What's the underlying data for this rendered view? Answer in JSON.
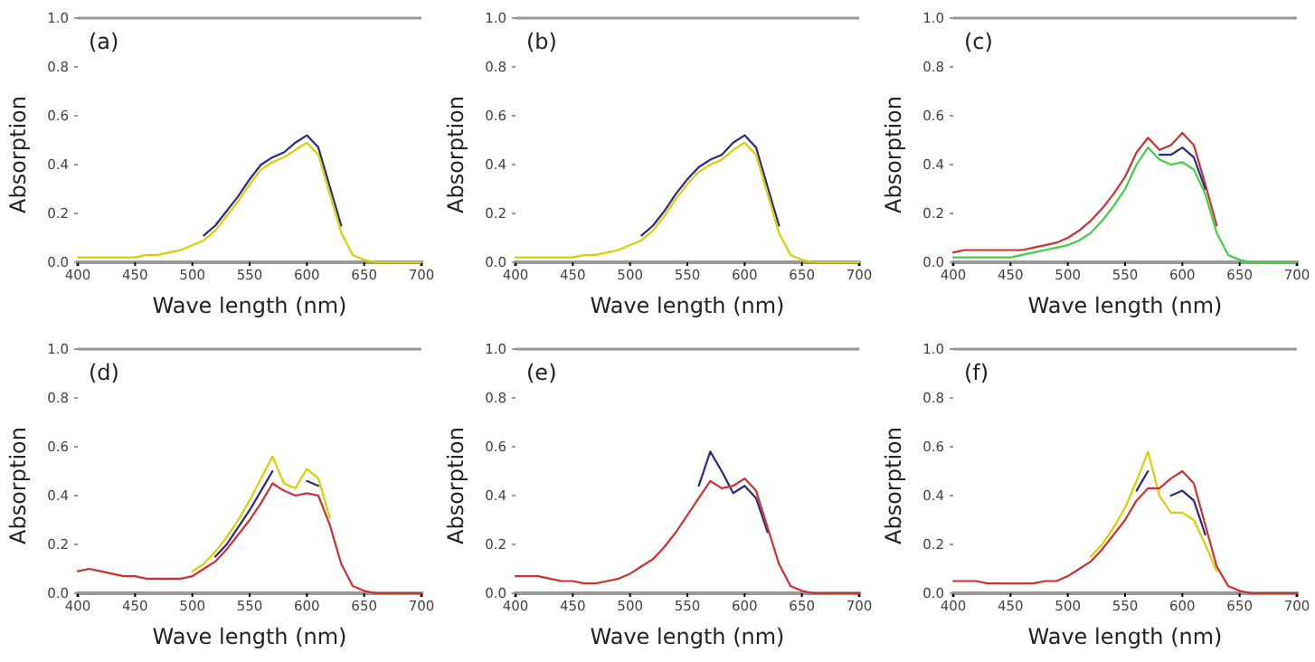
{
  "chart_data": [
    {
      "type": "line",
      "annotations": [
        "(a)"
      ],
      "xlabel": "Wave length (nm)",
      "ylabel": "Absorption",
      "x": [
        400,
        410,
        420,
        430,
        440,
        450,
        460,
        470,
        480,
        490,
        500,
        510,
        520,
        530,
        540,
        550,
        560,
        570,
        580,
        590,
        600,
        610,
        620,
        630,
        640,
        650,
        660,
        670,
        680,
        690,
        700
      ],
      "xlim": [
        400,
        700
      ],
      "xticks": [
        400,
        450,
        500,
        550,
        600,
        650,
        700
      ],
      "ylim": [
        0,
        1
      ],
      "yticks": [
        {
          "value": 0,
          "label": "0.0"
        },
        {
          "value": 0.2,
          "label": "0.2"
        },
        {
          "value": 0.4,
          "label": "0.4"
        },
        {
          "value": 0.6,
          "label": "0.6"
        },
        {
          "value": 0.8,
          "label": "0.8"
        },
        {
          "value": 1,
          "label": "1.0"
        }
      ],
      "marker": "none",
      "line_style": "solid",
      "series": [
        {
          "color": "#2a2a80",
          "values": [
            null,
            null,
            null,
            null,
            null,
            null,
            null,
            null,
            null,
            null,
            null,
            0.11,
            0.15,
            0.21,
            0.27,
            0.34,
            0.4,
            0.43,
            0.45,
            0.49,
            0.52,
            0.47,
            0.31,
            0.15,
            null,
            null,
            null,
            null,
            null,
            null,
            null
          ]
        },
        {
          "color": "#d8d000",
          "values": [
            0.02,
            0.02,
            0.02,
            0.02,
            0.02,
            0.02,
            0.03,
            0.03,
            0.04,
            0.05,
            0.07,
            0.09,
            0.13,
            0.19,
            0.25,
            0.32,
            0.38,
            0.41,
            0.43,
            0.46,
            0.49,
            0.44,
            0.28,
            0.12,
            0.03,
            0.01,
            0,
            0,
            0,
            0,
            0
          ]
        }
      ]
    },
    {
      "type": "line",
      "annotations": [
        "(b)"
      ],
      "xlabel": "Wave length (nm)",
      "ylabel": "Absorption",
      "x": [
        400,
        410,
        420,
        430,
        440,
        450,
        460,
        470,
        480,
        490,
        500,
        510,
        520,
        530,
        540,
        550,
        560,
        570,
        580,
        590,
        600,
        610,
        620,
        630,
        640,
        650,
        660,
        670,
        680,
        690,
        700
      ],
      "xlim": [
        400,
        700
      ],
      "xticks": [
        400,
        450,
        500,
        550,
        600,
        650,
        700
      ],
      "ylim": [
        0,
        1
      ],
      "yticks": [
        {
          "value": 0,
          "label": "0.0"
        },
        {
          "value": 0.2,
          "label": "0.2"
        },
        {
          "value": 0.4,
          "label": "0.4"
        },
        {
          "value": 0.6,
          "label": "0.6"
        },
        {
          "value": 0.8,
          "label": "0.8"
        },
        {
          "value": 1,
          "label": "1.0"
        }
      ],
      "marker": "none",
      "line_style": "solid",
      "series": [
        {
          "color": "#2a2a80",
          "values": [
            null,
            null,
            null,
            null,
            null,
            null,
            null,
            null,
            null,
            null,
            null,
            0.11,
            0.15,
            0.21,
            0.28,
            0.34,
            0.39,
            0.42,
            0.44,
            0.49,
            0.52,
            0.47,
            0.31,
            0.15,
            null,
            null,
            null,
            null,
            null,
            null,
            null
          ]
        },
        {
          "color": "#d8d000",
          "values": [
            0.02,
            0.02,
            0.02,
            0.02,
            0.02,
            0.02,
            0.03,
            0.03,
            0.04,
            0.05,
            0.07,
            0.09,
            0.13,
            0.19,
            0.26,
            0.32,
            0.37,
            0.4,
            0.42,
            0.46,
            0.49,
            0.44,
            0.28,
            0.12,
            0.03,
            0.01,
            0,
            0,
            0,
            0,
            0
          ]
        }
      ]
    },
    {
      "type": "line",
      "annotations": [
        "(c)"
      ],
      "xlabel": "Wave length (nm)",
      "ylabel": "Absorption",
      "x": [
        400,
        410,
        420,
        430,
        440,
        450,
        460,
        470,
        480,
        490,
        500,
        510,
        520,
        530,
        540,
        550,
        560,
        570,
        580,
        590,
        600,
        610,
        620,
        630,
        640,
        650,
        660,
        670,
        680,
        690,
        700
      ],
      "xlim": [
        400,
        700
      ],
      "xticks": [
        400,
        450,
        500,
        550,
        600,
        650,
        700
      ],
      "ylim": [
        0,
        1
      ],
      "yticks": [
        {
          "value": 0,
          "label": "0.0"
        },
        {
          "value": 0.2,
          "label": "0.2"
        },
        {
          "value": 0.4,
          "label": "0.4"
        },
        {
          "value": 0.6,
          "label": "0.6"
        },
        {
          "value": 0.8,
          "label": "0.8"
        },
        {
          "value": 1,
          "label": "1.0"
        }
      ],
      "marker": "none",
      "line_style": "solid",
      "series": [
        {
          "color": "#d03030",
          "values": [
            0.04,
            0.05,
            0.05,
            0.05,
            0.05,
            0.05,
            0.05,
            0.06,
            0.07,
            0.08,
            0.1,
            0.13,
            0.17,
            0.22,
            0.28,
            0.35,
            0.45,
            0.51,
            0.46,
            0.48,
            0.53,
            0.48,
            0.32,
            0.15,
            null,
            null,
            null,
            null,
            null,
            null,
            null
          ]
        },
        {
          "color": "#2a2a80",
          "values": [
            null,
            null,
            null,
            null,
            null,
            null,
            null,
            null,
            null,
            null,
            null,
            null,
            null,
            null,
            null,
            null,
            null,
            null,
            0.44,
            0.44,
            0.47,
            0.43,
            0.3,
            null,
            null,
            null,
            null,
            null,
            null,
            null,
            null
          ]
        },
        {
          "color": "#40d040",
          "values": [
            0.02,
            0.02,
            0.02,
            0.02,
            0.02,
            0.02,
            0.03,
            0.04,
            0.05,
            0.06,
            0.07,
            0.09,
            0.12,
            0.17,
            0.23,
            0.3,
            0.4,
            0.47,
            0.42,
            0.4,
            0.41,
            0.38,
            0.28,
            0.12,
            0.03,
            0.01,
            0,
            0,
            0,
            0,
            0
          ]
        }
      ]
    },
    {
      "type": "line",
      "annotations": [
        "(d)"
      ],
      "xlabel": "Wave length (nm)",
      "ylabel": "Absorption",
      "x": [
        400,
        410,
        420,
        430,
        440,
        450,
        460,
        470,
        480,
        490,
        500,
        510,
        520,
        530,
        540,
        550,
        560,
        570,
        580,
        590,
        600,
        610,
        620,
        630,
        640,
        650,
        660,
        670,
        680,
        690,
        700
      ],
      "xlim": [
        400,
        700
      ],
      "xticks": [
        400,
        450,
        500,
        550,
        600,
        650,
        700
      ],
      "ylim": [
        0,
        1
      ],
      "yticks": [
        {
          "value": 0,
          "label": "0.0"
        },
        {
          "value": 0.2,
          "label": "0.2"
        },
        {
          "value": 0.4,
          "label": "0.4"
        },
        {
          "value": 0.6,
          "label": "0.6"
        },
        {
          "value": 0.8,
          "label": "0.8"
        },
        {
          "value": 1,
          "label": "1.0"
        }
      ],
      "marker": "none",
      "line_style": "solid",
      "series": [
        {
          "color": "#d8d000",
          "values": [
            null,
            null,
            null,
            null,
            null,
            null,
            null,
            null,
            null,
            null,
            0.09,
            0.12,
            0.17,
            0.23,
            0.3,
            0.38,
            0.47,
            0.56,
            0.45,
            0.43,
            0.51,
            0.47,
            0.31,
            null,
            null,
            null,
            null,
            null,
            null,
            null,
            null
          ]
        },
        {
          "color": "#2a2a80",
          "values": [
            null,
            null,
            null,
            null,
            null,
            null,
            null,
            null,
            null,
            null,
            null,
            null,
            0.15,
            0.2,
            0.27,
            0.34,
            0.42,
            0.5,
            null,
            null,
            0.46,
            0.44,
            null,
            null,
            null,
            null,
            null,
            null,
            null,
            null,
            null
          ]
        },
        {
          "color": "#d03030",
          "values": [
            0.09,
            0.1,
            0.09,
            0.08,
            0.07,
            0.07,
            0.06,
            0.06,
            0.06,
            0.06,
            0.07,
            0.1,
            0.13,
            0.18,
            0.24,
            0.3,
            0.37,
            0.45,
            0.42,
            0.4,
            0.41,
            0.4,
            0.28,
            0.12,
            0.03,
            0.01,
            0,
            0,
            0,
            0,
            0
          ]
        }
      ]
    },
    {
      "type": "line",
      "annotations": [
        "(e)"
      ],
      "xlabel": "Wave length (nm)",
      "ylabel": "Absorption",
      "x": [
        400,
        410,
        420,
        430,
        440,
        450,
        460,
        470,
        480,
        490,
        500,
        510,
        520,
        530,
        540,
        550,
        560,
        570,
        580,
        590,
        600,
        610,
        620,
        630,
        640,
        650,
        660,
        670,
        680,
        690,
        700
      ],
      "xlim": [
        400,
        700
      ],
      "xticks": [
        400,
        450,
        500,
        550,
        600,
        650,
        700
      ],
      "ylim": [
        0,
        1
      ],
      "yticks": [
        {
          "value": 0,
          "label": "0.0"
        },
        {
          "value": 0.2,
          "label": "0.2"
        },
        {
          "value": 0.4,
          "label": "0.4"
        },
        {
          "value": 0.6,
          "label": "0.6"
        },
        {
          "value": 0.8,
          "label": "0.8"
        },
        {
          "value": 1,
          "label": "1.0"
        }
      ],
      "marker": "none",
      "line_style": "solid",
      "series": [
        {
          "color": "#2a2a80",
          "values": [
            null,
            null,
            null,
            null,
            null,
            null,
            null,
            null,
            null,
            null,
            null,
            null,
            null,
            null,
            null,
            null,
            0.44,
            0.58,
            0.5,
            0.41,
            0.44,
            0.39,
            0.25,
            null,
            null,
            null,
            null,
            null,
            null,
            null,
            null
          ]
        },
        {
          "color": "#d03030",
          "values": [
            0.07,
            0.07,
            0.07,
            0.06,
            0.05,
            0.05,
            0.04,
            0.04,
            0.05,
            0.06,
            0.08,
            0.11,
            0.14,
            0.19,
            0.25,
            0.32,
            0.39,
            0.46,
            0.43,
            0.44,
            0.47,
            0.42,
            0.27,
            0.12,
            0.03,
            0.01,
            0,
            0,
            0,
            0,
            0
          ]
        }
      ]
    },
    {
      "type": "line",
      "annotations": [
        "(f)"
      ],
      "xlabel": "Wave length (nm)",
      "ylabel": "Absorption",
      "x": [
        400,
        410,
        420,
        430,
        440,
        450,
        460,
        470,
        480,
        490,
        500,
        510,
        520,
        530,
        540,
        550,
        560,
        570,
        580,
        590,
        600,
        610,
        620,
        630,
        640,
        650,
        660,
        670,
        680,
        690,
        700
      ],
      "xlim": [
        400,
        700
      ],
      "xticks": [
        400,
        450,
        500,
        550,
        600,
        650,
        700
      ],
      "ylim": [
        0,
        1
      ],
      "yticks": [
        {
          "value": 0,
          "label": "0.0"
        },
        {
          "value": 0.2,
          "label": "0.2"
        },
        {
          "value": 0.4,
          "label": "0.4"
        },
        {
          "value": 0.6,
          "label": "0.6"
        },
        {
          "value": 0.8,
          "label": "0.8"
        },
        {
          "value": 1,
          "label": "1.0"
        }
      ],
      "marker": "none",
      "line_style": "solid",
      "series": [
        {
          "color": "#d8d000",
          "values": [
            null,
            null,
            null,
            null,
            null,
            null,
            null,
            null,
            null,
            null,
            null,
            null,
            0.15,
            0.2,
            0.27,
            0.35,
            0.46,
            0.58,
            0.4,
            0.33,
            0.33,
            0.3,
            0.2,
            0.09,
            null,
            null,
            null,
            null,
            null,
            null,
            null
          ]
        },
        {
          "color": "#2a2a80",
          "values": [
            null,
            null,
            null,
            null,
            null,
            null,
            null,
            null,
            null,
            null,
            null,
            null,
            null,
            null,
            null,
            null,
            0.42,
            0.5,
            null,
            0.4,
            0.42,
            0.38,
            0.24,
            null,
            null,
            null,
            null,
            null,
            null,
            null,
            null
          ]
        },
        {
          "color": "#d03030",
          "values": [
            0.05,
            0.05,
            0.05,
            0.04,
            0.04,
            0.04,
            0.04,
            0.04,
            0.05,
            0.05,
            0.07,
            0.1,
            0.13,
            0.18,
            0.24,
            0.3,
            0.38,
            0.43,
            0.43,
            0.47,
            0.5,
            0.45,
            0.28,
            0.11,
            0.03,
            0.01,
            0,
            0,
            0,
            0,
            0
          ]
        }
      ]
    }
  ]
}
